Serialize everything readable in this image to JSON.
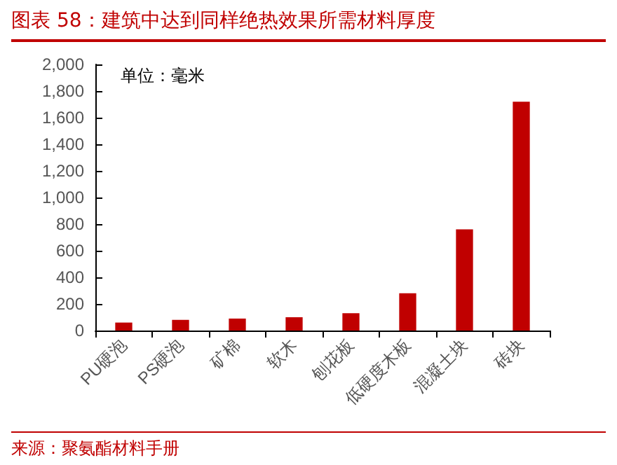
{
  "chart_data": {
    "type": "bar",
    "title": "图表 58：建筑中达到同样绝热效果所需材料厚度",
    "categories": [
      "PU硬泡",
      "PS硬泡",
      "矿棉",
      "软木",
      "刨花板",
      "低硬度木板",
      "混凝土块",
      "砖块"
    ],
    "values": [
      60,
      80,
      90,
      100,
      130,
      280,
      760,
      1720
    ],
    "color": "#c00000",
    "ylim": [
      0,
      2000
    ],
    "yticks": [
      0,
      200,
      400,
      600,
      800,
      {
        "value": 1000,
        "label": "1,000"
      },
      {
        "value": 1200,
        "label": "1,200"
      },
      {
        "value": 1400,
        "label": "1,400"
      },
      {
        "value": 1600,
        "label": "1,600"
      },
      {
        "value": 1800,
        "label": "1,800"
      },
      {
        "value": 2000,
        "label": "2,000"
      }
    ],
    "grid": false,
    "annotations": [
      "单位：毫米",
      "来源：聚氨酯材料手册"
    ]
  }
}
